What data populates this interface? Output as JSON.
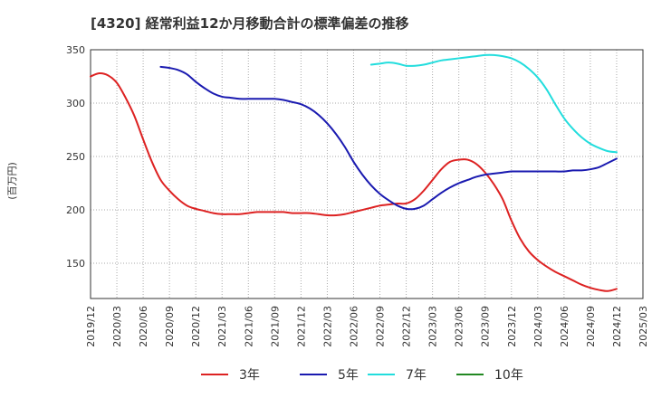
{
  "chart_data": {
    "type": "line",
    "title": "[4320]  経常利益12か月移動合計の標準偏差の推移",
    "ylabel": "(百万円)",
    "xlabel": "",
    "ylim": [
      117,
      350
    ],
    "yticks": [
      150,
      200,
      250,
      300,
      350
    ],
    "x_ticks": [
      "2019/12",
      "2020/03",
      "2020/06",
      "2020/09",
      "2020/12",
      "2021/03",
      "2021/06",
      "2021/09",
      "2021/12",
      "2022/03",
      "2022/06",
      "2022/09",
      "2022/12",
      "2023/03",
      "2023/06",
      "2023/09",
      "2023/12",
      "2024/03",
      "2024/06",
      "2024/09",
      "2024/12",
      "2025/03"
    ],
    "grid": true,
    "legend_position": "bottom",
    "series": [
      {
        "name": "3年",
        "color": "#dd2222",
        "x": [
          "2019/12",
          "2020/01",
          "2020/02",
          "2020/03",
          "2020/04",
          "2020/05",
          "2020/06",
          "2020/07",
          "2020/08",
          "2020/09",
          "2020/10",
          "2020/11",
          "2020/12",
          "2021/01",
          "2021/02",
          "2021/03",
          "2021/04",
          "2021/05",
          "2021/06",
          "2021/07",
          "2021/08",
          "2021/09",
          "2021/10",
          "2021/11",
          "2021/12",
          "2022/01",
          "2022/02",
          "2022/03",
          "2022/04",
          "2022/05",
          "2022/06",
          "2022/07",
          "2022/08",
          "2022/09",
          "2022/10",
          "2022/11",
          "2022/12",
          "2023/01",
          "2023/02",
          "2023/03",
          "2023/04",
          "2023/05",
          "2023/06",
          "2023/07",
          "2023/08",
          "2023/09",
          "2023/10",
          "2023/11",
          "2023/12",
          "2024/01",
          "2024/02",
          "2024/03",
          "2024/04",
          "2024/05",
          "2024/06",
          "2024/07",
          "2024/08",
          "2024/09",
          "2024/10",
          "2024/11",
          "2024/12"
        ],
        "values": [
          325,
          328,
          326,
          319,
          305,
          288,
          266,
          245,
          228,
          218,
          210,
          204,
          201,
          199,
          197,
          196,
          196,
          196,
          197,
          198,
          198,
          198,
          198,
          197,
          197,
          197,
          196,
          195,
          195,
          196,
          198,
          200,
          202,
          204,
          205,
          206,
          206,
          210,
          218,
          228,
          238,
          245,
          247,
          247,
          243,
          235,
          224,
          210,
          190,
          173,
          161,
          153,
          147,
          142,
          138,
          134,
          130,
          127,
          125,
          124,
          126
        ]
      },
      {
        "name": "5年",
        "color": "#1a1ab0",
        "x": [
          "2020/08",
          "2020/09",
          "2020/10",
          "2020/11",
          "2020/12",
          "2021/01",
          "2021/02",
          "2021/03",
          "2021/04",
          "2021/05",
          "2021/06",
          "2021/07",
          "2021/08",
          "2021/09",
          "2021/10",
          "2021/11",
          "2021/12",
          "2022/01",
          "2022/02",
          "2022/03",
          "2022/04",
          "2022/05",
          "2022/06",
          "2022/07",
          "2022/08",
          "2022/09",
          "2022/10",
          "2022/11",
          "2022/12",
          "2023/01",
          "2023/02",
          "2023/03",
          "2023/04",
          "2023/05",
          "2023/06",
          "2023/07",
          "2023/08",
          "2023/09",
          "2023/10",
          "2023/11",
          "2023/12",
          "2024/01",
          "2024/02",
          "2024/03",
          "2024/04",
          "2024/05",
          "2024/06",
          "2024/07",
          "2024/08",
          "2024/09",
          "2024/10",
          "2024/11",
          "2024/12"
        ],
        "values": [
          334,
          333,
          331,
          327,
          320,
          314,
          309,
          306,
          305,
          304,
          304,
          304,
          304,
          304,
          303,
          301,
          299,
          295,
          289,
          281,
          271,
          259,
          245,
          233,
          223,
          215,
          209,
          204,
          201,
          201,
          204,
          210,
          216,
          221,
          225,
          228,
          231,
          233,
          234,
          235,
          236,
          236,
          236,
          236,
          236,
          236,
          236,
          237,
          237,
          238,
          240,
          244,
          248
        ]
      },
      {
        "name": "7年",
        "color": "#22dddd",
        "x": [
          "2022/08",
          "2022/09",
          "2022/10",
          "2022/11",
          "2022/12",
          "2023/01",
          "2023/02",
          "2023/03",
          "2023/04",
          "2023/05",
          "2023/06",
          "2023/07",
          "2023/08",
          "2023/09",
          "2023/10",
          "2023/11",
          "2023/12",
          "2024/01",
          "2024/02",
          "2024/03",
          "2024/04",
          "2024/05",
          "2024/06",
          "2024/07",
          "2024/08",
          "2024/09",
          "2024/10",
          "2024/11",
          "2024/12"
        ],
        "values": [
          336,
          337,
          338,
          337,
          335,
          335,
          336,
          338,
          340,
          341,
          342,
          343,
          344,
          345,
          345,
          344,
          342,
          338,
          332,
          324,
          313,
          299,
          286,
          276,
          268,
          262,
          258,
          255,
          254
        ]
      },
      {
        "name": "10年",
        "color": "#228822",
        "x": [],
        "values": []
      }
    ]
  }
}
